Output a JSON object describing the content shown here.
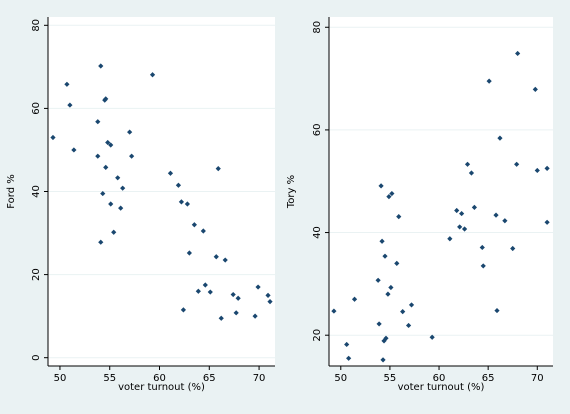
{
  "chart_data": [
    {
      "type": "scatter",
      "xlabel": "voter turnout (%)",
      "ylabel": "Ford %",
      "xlim": [
        48.8,
        71.6
      ],
      "ylim": [
        -2,
        82
      ],
      "xticks": [
        50,
        55,
        60,
        65,
        70
      ],
      "yticks": [
        0,
        20,
        40,
        60,
        80
      ],
      "grid": true,
      "marker_color": "#1a476f",
      "points": [
        {
          "x": 49.3,
          "y": 53.0
        },
        {
          "x": 50.7,
          "y": 65.8
        },
        {
          "x": 51.0,
          "y": 60.8
        },
        {
          "x": 51.4,
          "y": 50.0
        },
        {
          "x": 53.8,
          "y": 56.8
        },
        {
          "x": 54.1,
          "y": 70.2
        },
        {
          "x": 54.5,
          "y": 62.0
        },
        {
          "x": 54.6,
          "y": 62.3
        },
        {
          "x": 53.8,
          "y": 48.5
        },
        {
          "x": 54.8,
          "y": 51.8
        },
        {
          "x": 55.1,
          "y": 51.2
        },
        {
          "x": 54.3,
          "y": 39.5
        },
        {
          "x": 54.1,
          "y": 27.8
        },
        {
          "x": 54.6,
          "y": 45.8
        },
        {
          "x": 55.4,
          "y": 30.2
        },
        {
          "x": 55.1,
          "y": 37.0
        },
        {
          "x": 55.8,
          "y": 43.3
        },
        {
          "x": 56.1,
          "y": 36.0
        },
        {
          "x": 56.3,
          "y": 40.8
        },
        {
          "x": 57.0,
          "y": 54.3
        },
        {
          "x": 57.2,
          "y": 48.5
        },
        {
          "x": 59.3,
          "y": 68.1
        },
        {
          "x": 61.1,
          "y": 44.4
        },
        {
          "x": 61.9,
          "y": 41.5
        },
        {
          "x": 62.2,
          "y": 37.5
        },
        {
          "x": 62.8,
          "y": 37.0
        },
        {
          "x": 63.5,
          "y": 32.0
        },
        {
          "x": 63.0,
          "y": 25.2
        },
        {
          "x": 62.4,
          "y": 11.5
        },
        {
          "x": 63.9,
          "y": 16.0
        },
        {
          "x": 64.4,
          "y": 30.5
        },
        {
          "x": 64.6,
          "y": 17.5
        },
        {
          "x": 65.1,
          "y": 15.8
        },
        {
          "x": 65.7,
          "y": 24.3
        },
        {
          "x": 65.9,
          "y": 45.5
        },
        {
          "x": 66.2,
          "y": 9.5
        },
        {
          "x": 66.6,
          "y": 23.5
        },
        {
          "x": 67.4,
          "y": 15.2
        },
        {
          "x": 67.7,
          "y": 10.8
        },
        {
          "x": 67.9,
          "y": 14.3
        },
        {
          "x": 69.6,
          "y": 10.0
        },
        {
          "x": 69.9,
          "y": 17.0
        },
        {
          "x": 70.9,
          "y": 15.0
        },
        {
          "x": 71.1,
          "y": 13.5
        }
      ]
    },
    {
      "type": "scatter",
      "xlabel": "voter turnout (%)",
      "ylabel": "Tory %",
      "xlim": [
        48.8,
        71.6
      ],
      "ylim": [
        14,
        82
      ],
      "xticks": [
        50,
        55,
        60,
        65,
        70
      ],
      "yticks": [
        20,
        40,
        60,
        80
      ],
      "grid": true,
      "marker_color": "#1a476f",
      "points": [
        {
          "x": 49.3,
          "y": 24.7
        },
        {
          "x": 50.6,
          "y": 18.2
        },
        {
          "x": 50.8,
          "y": 15.5
        },
        {
          "x": 51.4,
          "y": 27.0
        },
        {
          "x": 53.8,
          "y": 30.7
        },
        {
          "x": 53.9,
          "y": 22.2
        },
        {
          "x": 54.1,
          "y": 49.1
        },
        {
          "x": 54.2,
          "y": 38.3
        },
        {
          "x": 54.3,
          "y": 15.2
        },
        {
          "x": 54.4,
          "y": 18.9
        },
        {
          "x": 54.5,
          "y": 35.4
        },
        {
          "x": 54.6,
          "y": 19.4
        },
        {
          "x": 54.8,
          "y": 28.0
        },
        {
          "x": 54.9,
          "y": 47.0
        },
        {
          "x": 55.1,
          "y": 29.3
        },
        {
          "x": 55.2,
          "y": 47.6
        },
        {
          "x": 55.7,
          "y": 34.0
        },
        {
          "x": 55.9,
          "y": 43.1
        },
        {
          "x": 56.3,
          "y": 24.6
        },
        {
          "x": 56.9,
          "y": 21.9
        },
        {
          "x": 57.2,
          "y": 25.9
        },
        {
          "x": 59.3,
          "y": 19.6
        },
        {
          "x": 61.1,
          "y": 38.8
        },
        {
          "x": 61.8,
          "y": 44.3
        },
        {
          "x": 62.1,
          "y": 41.1
        },
        {
          "x": 62.3,
          "y": 43.7
        },
        {
          "x": 62.6,
          "y": 40.7
        },
        {
          "x": 62.9,
          "y": 53.3
        },
        {
          "x": 63.3,
          "y": 51.6
        },
        {
          "x": 63.6,
          "y": 44.9
        },
        {
          "x": 64.4,
          "y": 37.1
        },
        {
          "x": 64.5,
          "y": 33.5
        },
        {
          "x": 65.1,
          "y": 69.5
        },
        {
          "x": 65.8,
          "y": 43.4
        },
        {
          "x": 65.9,
          "y": 24.8
        },
        {
          "x": 66.2,
          "y": 58.4
        },
        {
          "x": 66.7,
          "y": 42.3
        },
        {
          "x": 67.5,
          "y": 36.9
        },
        {
          "x": 67.9,
          "y": 53.3
        },
        {
          "x": 68.0,
          "y": 74.9
        },
        {
          "x": 69.8,
          "y": 67.9
        },
        {
          "x": 70.0,
          "y": 52.1
        },
        {
          "x": 71.0,
          "y": 52.5
        },
        {
          "x": 71.0,
          "y": 42.0
        }
      ]
    }
  ]
}
